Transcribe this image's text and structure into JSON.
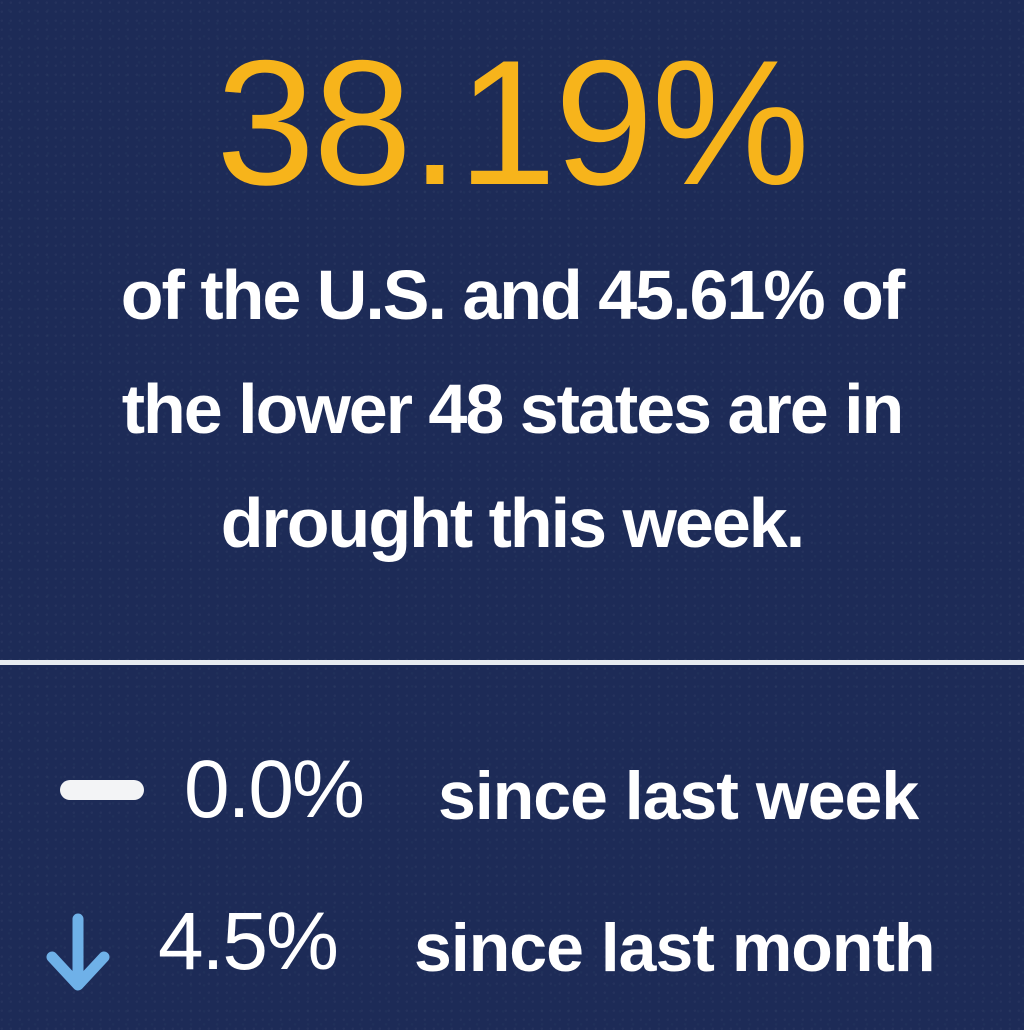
{
  "drought": {
    "headline_percent": "38.19%",
    "summary_lines": [
      "of the U.S. and 45.61% of",
      "the lower 48 states are in",
      "drought this week."
    ]
  },
  "changes": [
    {
      "icon": "dash-icon",
      "value": "0.0%",
      "label": "since last week"
    },
    {
      "icon": "down-arrow-icon",
      "value": "4.5%",
      "label": "since last month"
    }
  ],
  "colors": {
    "background": "#1d2b57",
    "headline": "#f7b41b",
    "text": "#ffffff",
    "down_arrow": "#6fb1e8"
  }
}
